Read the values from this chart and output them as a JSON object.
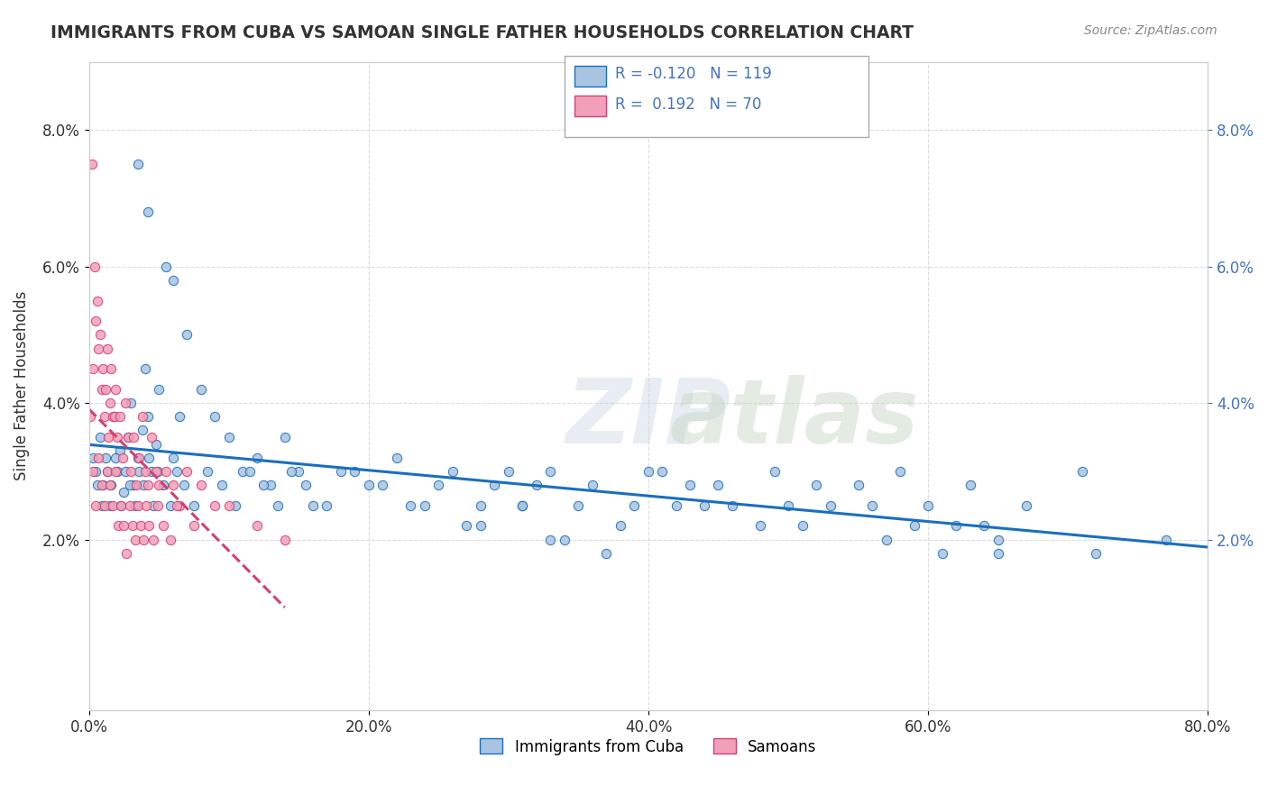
{
  "title": "IMMIGRANTS FROM CUBA VS SAMOAN SINGLE FATHER HOUSEHOLDS CORRELATION CHART",
  "source_text": "Source: ZipAtlas.com",
  "xlabel": "",
  "ylabel": "Single Father Households",
  "xlim": [
    0.0,
    0.8
  ],
  "ylim": [
    -0.005,
    0.09
  ],
  "xtick_labels": [
    "0.0%",
    "20.0%",
    "40.0%",
    "60.0%",
    "80.0%"
  ],
  "xtick_vals": [
    0.0,
    0.2,
    0.4,
    0.6,
    0.8
  ],
  "ytick_labels": [
    "2.0%",
    "4.0%",
    "6.0%",
    "8.0%"
  ],
  "ytick_vals": [
    0.02,
    0.04,
    0.06,
    0.08
  ],
  "legend1_r": "-0.120",
  "legend1_n": "119",
  "legend2_r": "0.192",
  "legend2_n": "70",
  "color_cuba": "#a8c4e0",
  "color_samoa": "#f0a0b8",
  "line_color_cuba": "#1a6fbd",
  "line_color_samoa": "#d44070",
  "watermark": "ZIPatlas",
  "cuba_scatter_x": [
    0.005,
    0.008,
    0.01,
    0.012,
    0.015,
    0.018,
    0.02,
    0.022,
    0.025,
    0.028,
    0.03,
    0.032,
    0.035,
    0.038,
    0.04,
    0.042,
    0.045,
    0.048,
    0.05,
    0.055,
    0.06,
    0.065,
    0.07,
    0.08,
    0.09,
    0.1,
    0.11,
    0.12,
    0.13,
    0.14,
    0.15,
    0.16,
    0.18,
    0.2,
    0.22,
    0.25,
    0.28,
    0.3,
    0.32,
    0.35,
    0.38,
    0.4,
    0.42,
    0.45,
    0.48,
    0.5,
    0.55,
    0.6,
    0.62,
    0.65,
    0.003,
    0.006,
    0.009,
    0.013,
    0.016,
    0.019,
    0.023,
    0.026,
    0.029,
    0.033,
    0.036,
    0.039,
    0.043,
    0.046,
    0.049,
    0.053,
    0.058,
    0.063,
    0.068,
    0.075,
    0.085,
    0.095,
    0.105,
    0.115,
    0.125,
    0.135,
    0.145,
    0.155,
    0.17,
    0.19,
    0.21,
    0.23,
    0.26,
    0.29,
    0.31,
    0.33,
    0.36,
    0.39,
    0.41,
    0.43,
    0.46,
    0.49,
    0.52,
    0.56,
    0.58,
    0.63,
    0.67,
    0.71,
    0.28,
    0.33,
    0.37,
    0.44,
    0.51,
    0.57,
    0.61,
    0.64,
    0.24,
    0.27,
    0.31,
    0.34,
    0.53,
    0.59,
    0.65,
    0.72,
    0.77,
    0.035,
    0.042,
    0.06
  ],
  "cuba_scatter_y": [
    0.03,
    0.035,
    0.028,
    0.032,
    0.025,
    0.038,
    0.03,
    0.033,
    0.027,
    0.035,
    0.04,
    0.028,
    0.032,
    0.036,
    0.045,
    0.038,
    0.03,
    0.034,
    0.042,
    0.06,
    0.032,
    0.038,
    0.05,
    0.042,
    0.038,
    0.035,
    0.03,
    0.032,
    0.028,
    0.035,
    0.03,
    0.025,
    0.03,
    0.028,
    0.032,
    0.028,
    0.025,
    0.03,
    0.028,
    0.025,
    0.022,
    0.03,
    0.025,
    0.028,
    0.022,
    0.025,
    0.028,
    0.025,
    0.022,
    0.018,
    0.032,
    0.028,
    0.025,
    0.03,
    0.028,
    0.032,
    0.025,
    0.03,
    0.028,
    0.025,
    0.03,
    0.028,
    0.032,
    0.025,
    0.03,
    0.028,
    0.025,
    0.03,
    0.028,
    0.025,
    0.03,
    0.028,
    0.025,
    0.03,
    0.028,
    0.025,
    0.03,
    0.028,
    0.025,
    0.03,
    0.028,
    0.025,
    0.03,
    0.028,
    0.025,
    0.03,
    0.028,
    0.025,
    0.03,
    0.028,
    0.025,
    0.03,
    0.028,
    0.025,
    0.03,
    0.028,
    0.025,
    0.03,
    0.022,
    0.02,
    0.018,
    0.025,
    0.022,
    0.02,
    0.018,
    0.022,
    0.025,
    0.022,
    0.025,
    0.02,
    0.025,
    0.022,
    0.02,
    0.018,
    0.02,
    0.075,
    0.068,
    0.058
  ],
  "samoa_scatter_x": [
    0.002,
    0.003,
    0.004,
    0.005,
    0.006,
    0.007,
    0.008,
    0.009,
    0.01,
    0.011,
    0.012,
    0.013,
    0.014,
    0.015,
    0.016,
    0.017,
    0.018,
    0.019,
    0.02,
    0.022,
    0.024,
    0.026,
    0.028,
    0.03,
    0.032,
    0.034,
    0.036,
    0.038,
    0.04,
    0.042,
    0.045,
    0.048,
    0.05,
    0.055,
    0.06,
    0.065,
    0.07,
    0.08,
    0.09,
    0.1,
    0.12,
    0.14,
    0.001,
    0.003,
    0.005,
    0.007,
    0.009,
    0.011,
    0.013,
    0.015,
    0.017,
    0.019,
    0.021,
    0.023,
    0.025,
    0.027,
    0.029,
    0.031,
    0.033,
    0.035,
    0.037,
    0.039,
    0.041,
    0.043,
    0.046,
    0.049,
    0.053,
    0.058,
    0.063,
    0.075
  ],
  "samoa_scatter_y": [
    0.075,
    0.045,
    0.06,
    0.052,
    0.055,
    0.048,
    0.05,
    0.042,
    0.045,
    0.038,
    0.042,
    0.048,
    0.035,
    0.04,
    0.045,
    0.038,
    0.038,
    0.042,
    0.035,
    0.038,
    0.032,
    0.04,
    0.035,
    0.03,
    0.035,
    0.028,
    0.032,
    0.038,
    0.03,
    0.028,
    0.035,
    0.03,
    0.028,
    0.03,
    0.028,
    0.025,
    0.03,
    0.028,
    0.025,
    0.025,
    0.022,
    0.02,
    0.038,
    0.03,
    0.025,
    0.032,
    0.028,
    0.025,
    0.03,
    0.028,
    0.025,
    0.03,
    0.022,
    0.025,
    0.022,
    0.018,
    0.025,
    0.022,
    0.02,
    0.025,
    0.022,
    0.02,
    0.025,
    0.022,
    0.02,
    0.025,
    0.022,
    0.02,
    0.025,
    0.022
  ],
  "background_color": "#ffffff",
  "grid_color": "#cccccc"
}
